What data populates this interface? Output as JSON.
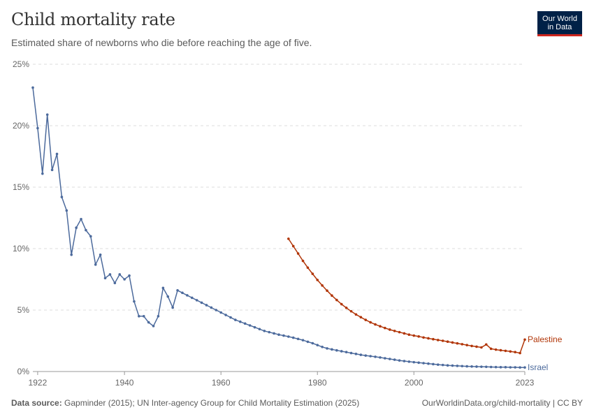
{
  "header": {
    "title": "Child mortality rate",
    "subtitle": "Estimated share of newborns who die before reaching the age of five."
  },
  "logo": {
    "line1": "Our World",
    "line2": "in Data"
  },
  "footer": {
    "source_label": "Data source:",
    "source_text": "Gapminder (2015); UN Inter-agency Group for Child Mortality Estimation (2025)",
    "credit": "OurWorldinData.org/child-mortality | CC BY"
  },
  "colors": {
    "Israel": "#4c6a9c",
    "Palestine": "#b13507"
  },
  "chart_data": {
    "type": "line",
    "title": "Child mortality rate",
    "subtitle": "Estimated share of newborns who die before reaching the age of five.",
    "xlim": [
      1921,
      2023
    ],
    "ylim": [
      0,
      25
    ],
    "x_ticks": [
      1922,
      1940,
      1960,
      1980,
      2000,
      2023
    ],
    "y_ticks": [
      0,
      5,
      10,
      15,
      20,
      25
    ],
    "y_tick_labels": [
      "0%",
      "5%",
      "10%",
      "15%",
      "20%",
      "25%"
    ],
    "grid": "horizontal dashed",
    "legend": "inline labels at line ends",
    "series": [
      {
        "name": "Israel",
        "color": "#4c6a9c",
        "x": [
          1921,
          1922,
          1923,
          1924,
          1925,
          1926,
          1927,
          1928,
          1929,
          1930,
          1931,
          1932,
          1933,
          1934,
          1935,
          1936,
          1937,
          1938,
          1939,
          1940,
          1941,
          1942,
          1943,
          1944,
          1945,
          1946,
          1947,
          1948,
          1949,
          1950,
          1951,
          1952,
          1953,
          1954,
          1955,
          1956,
          1957,
          1958,
          1959,
          1960,
          1961,
          1962,
          1963,
          1964,
          1965,
          1966,
          1967,
          1968,
          1969,
          1970,
          1971,
          1972,
          1973,
          1974,
          1975,
          1976,
          1977,
          1978,
          1979,
          1980,
          1981,
          1982,
          1983,
          1984,
          1985,
          1986,
          1987,
          1988,
          1989,
          1990,
          1991,
          1992,
          1993,
          1994,
          1995,
          1996,
          1997,
          1998,
          1999,
          2000,
          2001,
          2002,
          2003,
          2004,
          2005,
          2006,
          2007,
          2008,
          2009,
          2010,
          2011,
          2012,
          2013,
          2014,
          2015,
          2016,
          2017,
          2018,
          2019,
          2020,
          2021,
          2022,
          2023
        ],
        "values": [
          23.1,
          19.8,
          16.1,
          20.9,
          16.4,
          17.7,
          14.2,
          13.1,
          9.5,
          11.7,
          12.4,
          11.5,
          11.0,
          8.7,
          9.5,
          7.6,
          7.9,
          7.2,
          7.9,
          7.5,
          7.8,
          5.7,
          4.5,
          4.5,
          4.0,
          3.7,
          4.5,
          6.8,
          6.1,
          5.2,
          6.6,
          6.4,
          6.2,
          6.0,
          5.8,
          5.6,
          5.4,
          5.2,
          5.0,
          4.8,
          4.6,
          4.4,
          4.2,
          4.05,
          3.9,
          3.75,
          3.6,
          3.45,
          3.3,
          3.2,
          3.1,
          3.0,
          2.92,
          2.84,
          2.75,
          2.65,
          2.55,
          2.42,
          2.3,
          2.15,
          2.0,
          1.88,
          1.8,
          1.72,
          1.65,
          1.58,
          1.5,
          1.43,
          1.36,
          1.3,
          1.25,
          1.2,
          1.14,
          1.08,
          1.02,
          0.96,
          0.9,
          0.85,
          0.8,
          0.76,
          0.72,
          0.68,
          0.64,
          0.6,
          0.56,
          0.53,
          0.5,
          0.48,
          0.46,
          0.44,
          0.42,
          0.41,
          0.4,
          0.39,
          0.38,
          0.37,
          0.36,
          0.35,
          0.35,
          0.34,
          0.34,
          0.33,
          0.33
        ]
      },
      {
        "name": "Palestine",
        "color": "#b13507",
        "x": [
          1974,
          1975,
          1976,
          1977,
          1978,
          1979,
          1980,
          1981,
          1982,
          1983,
          1984,
          1985,
          1986,
          1987,
          1988,
          1989,
          1990,
          1991,
          1992,
          1993,
          1994,
          1995,
          1996,
          1997,
          1998,
          1999,
          2000,
          2001,
          2002,
          2003,
          2004,
          2005,
          2006,
          2007,
          2008,
          2009,
          2010,
          2011,
          2012,
          2013,
          2014,
          2015,
          2016,
          2017,
          2018,
          2019,
          2020,
          2021,
          2022,
          2023
        ],
        "values": [
          10.8,
          10.2,
          9.6,
          9.0,
          8.45,
          7.95,
          7.45,
          7.0,
          6.58,
          6.18,
          5.82,
          5.48,
          5.18,
          4.9,
          4.64,
          4.42,
          4.2,
          4.0,
          3.83,
          3.68,
          3.54,
          3.41,
          3.3,
          3.2,
          3.1,
          3.0,
          2.92,
          2.85,
          2.77,
          2.7,
          2.63,
          2.56,
          2.5,
          2.43,
          2.36,
          2.29,
          2.22,
          2.15,
          2.08,
          2.02,
          1.96,
          2.2,
          1.85,
          1.78,
          1.73,
          1.68,
          1.63,
          1.58,
          1.5,
          2.6
        ]
      }
    ]
  }
}
